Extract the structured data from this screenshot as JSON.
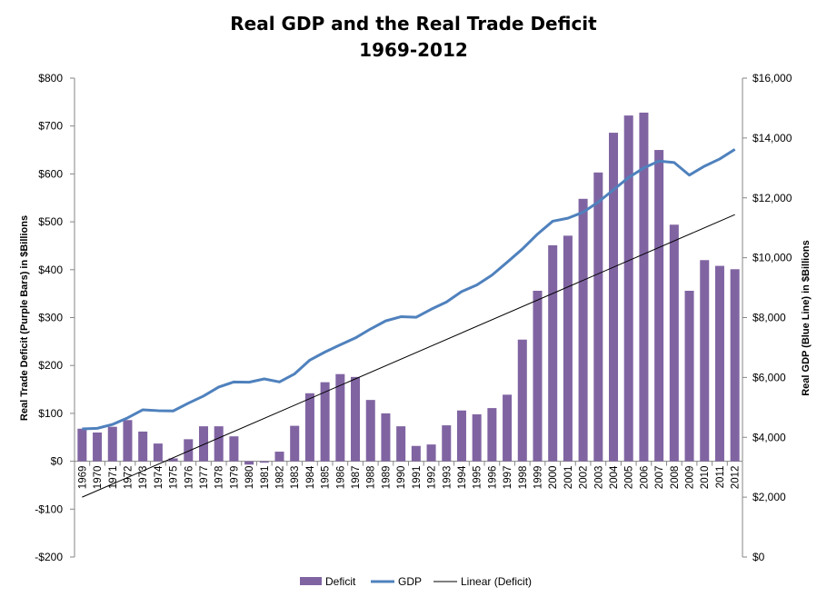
{
  "chart_data": {
    "type": "bar",
    "title": "Real GDP and the Real Trade Deficit",
    "subtitle": "1969-2012",
    "ylabel_left": "Real Trade Deficit (Purple Bars) in $Billions",
    "ylabel_right": "Real GDP (Blue Line) in $Billions",
    "ylim_left": [
      -200,
      800
    ],
    "ylim_right": [
      0,
      16000
    ],
    "left_ticks": [
      -200,
      -100,
      0,
      100,
      200,
      300,
      400,
      500,
      600,
      700,
      800
    ],
    "left_tick_labels": [
      "-$200",
      "-$100",
      "$0",
      "$100",
      "$200",
      "$300",
      "$400",
      "$500",
      "$600",
      "$700",
      "$800"
    ],
    "right_ticks": [
      0,
      2000,
      4000,
      6000,
      8000,
      10000,
      12000,
      14000,
      16000
    ],
    "right_tick_labels": [
      "$0",
      "$2,000",
      "$4,000",
      "$6,000",
      "$8,000",
      "$10,000",
      "$12,000",
      "$14,000",
      "$16,000"
    ],
    "categories": [
      "1969",
      "1970",
      "1971",
      "1972",
      "1973",
      "1974",
      "1975",
      "1976",
      "1977",
      "1978",
      "1979",
      "1980",
      "1981",
      "1982",
      "1983",
      "1984",
      "1985",
      "1986",
      "1987",
      "1988",
      "1989",
      "1990",
      "1991",
      "1992",
      "1993",
      "1994",
      "1995",
      "1996",
      "1997",
      "1998",
      "1999",
      "2000",
      "2001",
      "2002",
      "2003",
      "2004",
      "2005",
      "2006",
      "2007",
      "2008",
      "2009",
      "2010",
      "2011",
      "2012"
    ],
    "series": [
      {
        "name": "Deficit",
        "kind": "bar",
        "axis": "left",
        "color": "#8064a2",
        "values": [
          68,
          60,
          72,
          86,
          62,
          37,
          6,
          46,
          73,
          73,
          52,
          -7,
          -3,
          20,
          74,
          142,
          165,
          182,
          176,
          128,
          100,
          73,
          32,
          35,
          75,
          106,
          98,
          111,
          139,
          254,
          356,
          451,
          471,
          548,
          603,
          686,
          722,
          728,
          650,
          494,
          356,
          420,
          408,
          401
        ]
      },
      {
        "name": "GDP",
        "kind": "line",
        "axis": "right",
        "color": "#4f81bd",
        "values": [
          4280,
          4300,
          4430,
          4650,
          4920,
          4890,
          4880,
          5140,
          5380,
          5680,
          5850,
          5840,
          5950,
          5850,
          6120,
          6580,
          6850,
          7090,
          7320,
          7620,
          7890,
          8030,
          8010,
          8280,
          8520,
          8870,
          9090,
          9420,
          9850,
          10290,
          10790,
          11220,
          11320,
          11520,
          11860,
          12270,
          12680,
          13000,
          13230,
          13180,
          12760,
          13060,
          13300,
          13620
        ]
      },
      {
        "name": "Linear (Deficit)",
        "kind": "trendline",
        "axis": "left",
        "color": "#000000",
        "start": -75,
        "end": 515
      }
    ],
    "legend_position": "bottom",
    "grid": false
  }
}
